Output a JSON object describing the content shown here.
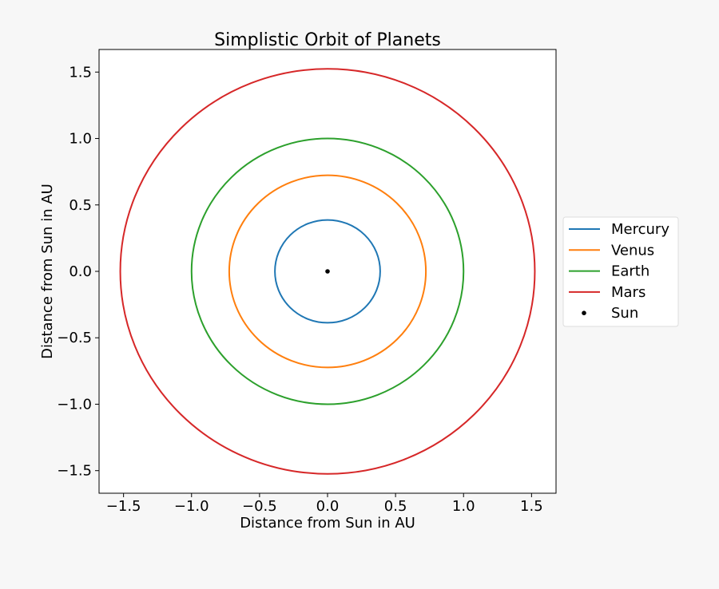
{
  "chart_data": {
    "type": "line",
    "title": "Simplistic Orbit of Planets",
    "xlabel": "Distance from Sun in AU",
    "ylabel": "Distance from Sun in AU",
    "xlim": [
      -1.68,
      1.68
    ],
    "ylim": [
      -1.67,
      1.67
    ],
    "xticks": [
      -1.5,
      -1.0,
      -0.5,
      0.0,
      0.5,
      1.0,
      1.5
    ],
    "yticks": [
      -1.5,
      -1.0,
      -0.5,
      0.0,
      0.5,
      1.0,
      1.5
    ],
    "xtick_labels": [
      "−1.5",
      "−1.0",
      "−0.5",
      "0.0",
      "0.5",
      "1.0",
      "1.5"
    ],
    "ytick_labels": [
      "−1.5",
      "−1.0",
      "−0.5",
      "0.0",
      "0.5",
      "1.0",
      "1.5"
    ],
    "grid": false,
    "legend_position": "right, outside",
    "series": [
      {
        "name": "Mercury",
        "kind": "circle",
        "radius": 0.387,
        "color": "#1f77b4"
      },
      {
        "name": "Venus",
        "kind": "circle",
        "radius": 0.723,
        "color": "#ff7f0e"
      },
      {
        "name": "Earth",
        "kind": "circle",
        "radius": 1.0,
        "color": "#2ca02c"
      },
      {
        "name": "Mars",
        "kind": "circle",
        "radius": 1.524,
        "color": "#d62728"
      },
      {
        "name": "Sun",
        "kind": "point",
        "x": 0,
        "y": 0,
        "color": "#000000"
      }
    ]
  }
}
